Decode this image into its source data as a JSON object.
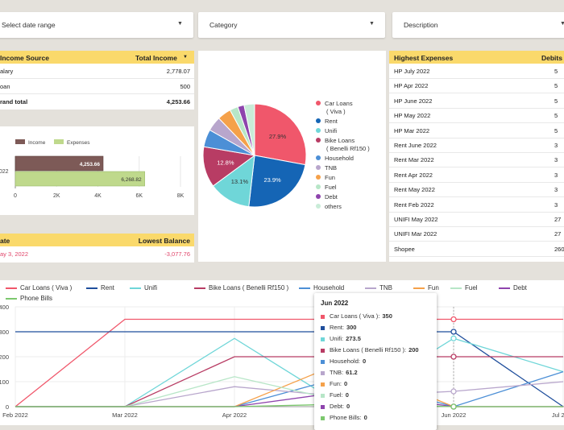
{
  "filters": [
    {
      "label": "Select date range",
      "caret": "▼"
    },
    {
      "label": "Category",
      "caret": "▼"
    },
    {
      "label": "Description",
      "caret": "▼"
    }
  ],
  "income_table": {
    "col1": "Income Source",
    "col2": "Total Income",
    "sort_icon": "▼",
    "rows": [
      {
        "label": "alary",
        "value": "2,778.07"
      },
      {
        "label": "oan",
        "value": "500"
      }
    ],
    "total": {
      "label": "rand total",
      "value": "4,253.66"
    }
  },
  "bar_legend": {
    "income": "Income",
    "expenses": "Expenses"
  },
  "balance_table": {
    "col1": "ate",
    "col2": "Lowest Balance",
    "row": {
      "date": "ay 3, 2022",
      "value": "-3,077.76"
    }
  },
  "expenses_table": {
    "col1": "Highest Expenses",
    "col2": "Debits",
    "rows": [
      {
        "label": "HP July 2022",
        "value": "5"
      },
      {
        "label": "HP Apr 2022",
        "value": "5"
      },
      {
        "label": "HP June 2022",
        "value": "5"
      },
      {
        "label": "HP May 2022",
        "value": "5"
      },
      {
        "label": "HP Mar 2022",
        "value": "5"
      },
      {
        "label": "Rent June 2022",
        "value": "3"
      },
      {
        "label": "Rent Mar 2022",
        "value": "3"
      },
      {
        "label": "Rent Apr 2022",
        "value": "3"
      },
      {
        "label": "Rent May 2022",
        "value": "3"
      },
      {
        "label": "Rent Feb 2022",
        "value": "3"
      },
      {
        "label": "UNIFI May 2022",
        "value": "27"
      },
      {
        "label": "UNIFI Mar 2022",
        "value": "27"
      },
      {
        "label": "Shopee",
        "value": "260"
      },
      {
        "label": "UNIFI J... 2022",
        "value": ""
      }
    ]
  },
  "pie_legend": [
    {
      "label": "Car Loans",
      "sub": "( Viva )",
      "color": "#f0576b"
    },
    {
      "label": "Rent",
      "sub": "",
      "color": "#1565b5"
    },
    {
      "label": "Unifi",
      "sub": "",
      "color": "#6fd6d8"
    },
    {
      "label": "Bike Loans",
      "sub": "( Benelli Rf150 )",
      "color": "#b83c64"
    },
    {
      "label": "Household",
      "sub": "",
      "color": "#4c8fd6"
    },
    {
      "label": "TNB",
      "sub": "",
      "color": "#b8a6cc"
    },
    {
      "label": "Fun",
      "sub": "",
      "color": "#f5a14a"
    },
    {
      "label": "Fuel",
      "sub": "",
      "color": "#b7e6c7"
    },
    {
      "label": "Debt",
      "sub": "",
      "color": "#8e44ad"
    },
    {
      "label": "others",
      "sub": "",
      "color": "#c9ecd8"
    }
  ],
  "line_legend": [
    {
      "label": "Car Loans ( Viva )",
      "color": "#f0576b"
    },
    {
      "label": "Rent",
      "color": "#1f4e9c"
    },
    {
      "label": "Unifi",
      "color": "#6fd6d8"
    },
    {
      "label": "Bike Loans ( Benelli Rf150 )",
      "color": "#b83c64"
    },
    {
      "label": "Household",
      "color": "#4c8fd6"
    },
    {
      "label": "TNB",
      "color": "#b8a6cc"
    },
    {
      "label": "Fun",
      "color": "#f5a14a"
    },
    {
      "label": "Fuel",
      "color": "#b7e6c7"
    },
    {
      "label": "Debt",
      "color": "#8e44ad"
    },
    {
      "label": "Phone Bills",
      "color": "#7cc86e"
    }
  ],
  "tooltip": {
    "title": "Jun 2022",
    "rows": [
      {
        "label": "Car Loans ( Viva ):",
        "value": "350",
        "color": "#f0576b"
      },
      {
        "label": "Rent:",
        "value": "300",
        "color": "#1f4e9c"
      },
      {
        "label": "Unifi:",
        "value": "273.5",
        "color": "#6fd6d8"
      },
      {
        "label": "Bike Loans ( Benelli Rf150 ):",
        "value": "200",
        "color": "#b83c64"
      },
      {
        "label": "Household:",
        "value": "0",
        "color": "#4c8fd6"
      },
      {
        "label": "TNB:",
        "value": "61.2",
        "color": "#b8a6cc"
      },
      {
        "label": "Fun:",
        "value": "0",
        "color": "#f5a14a"
      },
      {
        "label": "Fuel:",
        "value": "0",
        "color": "#b7e6c7"
      },
      {
        "label": "Debt:",
        "value": "0",
        "color": "#8e44ad"
      },
      {
        "label": "Phone Bills:",
        "value": "0",
        "color": "#7cc86e"
      }
    ]
  },
  "chart_data": [
    {
      "type": "bar",
      "orientation": "horizontal",
      "categories": [
        "2022"
      ],
      "series": [
        {
          "name": "Income",
          "values": [
            4253.66
          ],
          "label": "4,253.66",
          "color": "#7d5a57"
        },
        {
          "name": "Expenses",
          "values": [
            6268.82
          ],
          "label": "6,268.82",
          "color": "#bfd98c"
        }
      ],
      "xticks": [
        "0",
        "2K",
        "4K",
        "6K",
        "8K"
      ],
      "xlim": [
        0,
        8000
      ]
    },
    {
      "type": "pie",
      "slices": [
        {
          "label": "Car Loans ( Viva )",
          "value": 27.9,
          "text": "27.9%"
        },
        {
          "label": "Rent",
          "value": 23.9,
          "text": "23.9%"
        },
        {
          "label": "Unifi",
          "value": 13.1,
          "text": "13.1%"
        },
        {
          "label": "Bike Loans ( Benelli Rf150 )",
          "value": 12.8,
          "text": "12.8%"
        },
        {
          "label": "Household",
          "value": 5.5,
          "text": ""
        },
        {
          "label": "TNB",
          "value": 4.6,
          "text": ""
        },
        {
          "label": "Fun",
          "value": 4.3,
          "text": ""
        },
        {
          "label": "Fuel",
          "value": 2.6,
          "text": ""
        },
        {
          "label": "Debt",
          "value": 2.0,
          "text": ""
        },
        {
          "label": "others",
          "value": 3.3,
          "text": ""
        }
      ]
    },
    {
      "type": "line",
      "x": [
        "Feb 2022",
        "Mar 2022",
        "Apr 2022",
        "May 2022",
        "Jun 2022",
        "Jul 2022"
      ],
      "yticks": [
        "0",
        "100",
        "200",
        "300",
        "400"
      ],
      "ylim": [
        0,
        400
      ],
      "series": [
        {
          "name": "Car Loans ( Viva )",
          "values": [
            0,
            350,
            350,
            350,
            350,
            350
          ]
        },
        {
          "name": "Rent",
          "values": [
            300,
            300,
            300,
            300,
            300,
            0
          ]
        },
        {
          "name": "Unifi",
          "values": [
            0,
            0,
            273.5,
            0,
            273.5,
            140
          ]
        },
        {
          "name": "Bike Loans ( Benelli Rf150 )",
          "values": [
            0,
            0,
            200,
            200,
            200,
            200
          ]
        },
        {
          "name": "Household",
          "values": [
            0,
            0,
            0,
            120,
            0,
            140
          ]
        },
        {
          "name": "TNB",
          "values": [
            0,
            0,
            80,
            40,
            61.2,
            100
          ]
        },
        {
          "name": "Fun",
          "values": [
            0,
            0,
            0,
            180,
            0,
            0
          ]
        },
        {
          "name": "Fuel",
          "values": [
            0,
            0,
            120,
            20,
            0,
            0
          ]
        },
        {
          "name": "Debt",
          "values": [
            0,
            0,
            0,
            60,
            0,
            0
          ]
        },
        {
          "name": "Phone Bills",
          "values": [
            0,
            0,
            0,
            10,
            0,
            0
          ]
        }
      ]
    }
  ]
}
